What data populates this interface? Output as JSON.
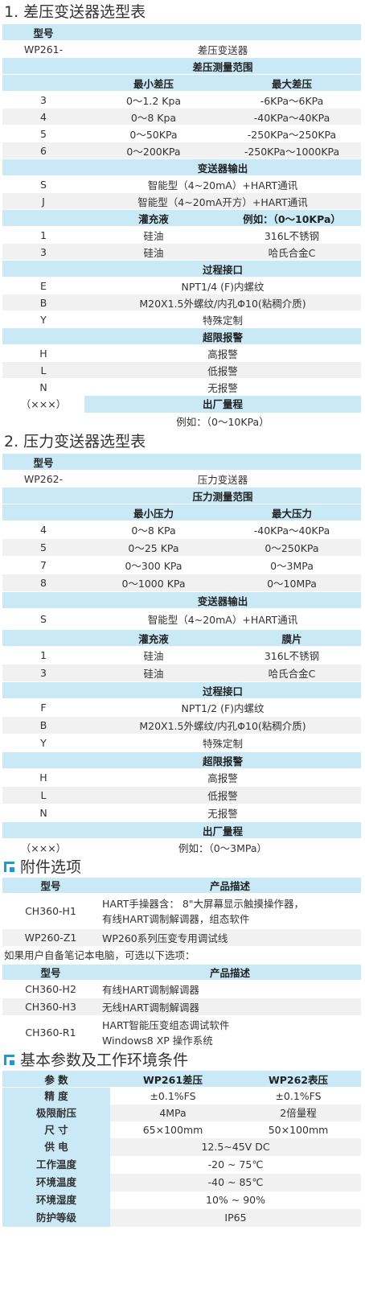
{
  "dp": {
    "title": "1. 差压变送器选型表",
    "model_label": "型号",
    "model_code": "WP261-",
    "model_name": "差压变送器",
    "range_title": "差压测量范围",
    "range_min_h": "最小差压",
    "range_max_h": "最大差压",
    "ranges": [
      {
        "code": "3",
        "min": "0～1.2 Kpa",
        "max": "-6KPa～6KPa"
      },
      {
        "code": "4",
        "min": "0～8 Kpa",
        "max": "-40KPa～40KPa"
      },
      {
        "code": "5",
        "min": "0～50KPa",
        "max": "-250KPa～250KPa"
      },
      {
        "code": "6",
        "min": "0～200KPa",
        "max": "-250KPa～1000KPa"
      }
    ],
    "out_title": "变送器输出",
    "outputs": [
      {
        "code": "S",
        "text": "智能型（4~20mA）+HART通讯"
      },
      {
        "code": "J",
        "text": "智能型（4~20mA开方）+HART通讯"
      }
    ],
    "fill_title": "灌充液",
    "fill_example": "例如：（0～10KPa）",
    "fills": [
      {
        "code": "1",
        "a": "硅油",
        "b": "316L不锈钢"
      },
      {
        "code": "3",
        "a": "硅油",
        "b": "哈氏合金C"
      }
    ],
    "conn_title": "过程接口",
    "conns": [
      {
        "code": "E",
        "text": "NPT1/4 (F)内螺纹"
      },
      {
        "code": "B",
        "text": "M20X1.5外螺纹/内孔Φ10(粘稠介质)"
      },
      {
        "code": "Y",
        "text": "特殊定制"
      }
    ],
    "alarm_title": "超限报警",
    "alarms": [
      {
        "code": "H",
        "text": "高报警"
      },
      {
        "code": "L",
        "text": "低报警"
      },
      {
        "code": "N",
        "text": "无报警"
      }
    ],
    "factory_code": "（×××）",
    "factory_title": "出厂量程",
    "factory_example": "例如：（0～10KPa）"
  },
  "pr": {
    "title": "2. 压力变送器选型表",
    "model_label": "型号",
    "model_code": "WP262-",
    "model_name": "压力变送器",
    "range_title": "压力测量范围",
    "range_min_h": "最小压力",
    "range_max_h": "最大压力",
    "ranges": [
      {
        "code": "4",
        "min": "0～8 KPa",
        "max": "-40KPa～40KPa"
      },
      {
        "code": "5",
        "min": "0～25 KPa",
        "max": "0～250KPa"
      },
      {
        "code": "7",
        "min": "0～300 KPa",
        "max": "0～3MPa"
      },
      {
        "code": "8",
        "min": "0～1000 KPa",
        "max": "0～10MPa"
      }
    ],
    "out_title": "变送器输出",
    "outputs": [
      {
        "code": "S",
        "text": "智能型（4~20mA）+HART通讯"
      }
    ],
    "fill_title": "灌充液",
    "fill_b": "膜片",
    "fills": [
      {
        "code": "1",
        "a": "硅油",
        "b": "316L不锈钢"
      },
      {
        "code": "3",
        "a": "硅油",
        "b": "哈氏合金C"
      }
    ],
    "conn_title": "过程接口",
    "conns": [
      {
        "code": "F",
        "text": "NPT1/2 (F)内螺纹"
      },
      {
        "code": "B",
        "text": "M20X1.5外螺纹/内孔Φ10(粘稠介质)"
      },
      {
        "code": "Y",
        "text": "特殊定制"
      }
    ],
    "alarm_title": "超限报警",
    "alarms": [
      {
        "code": "H",
        "text": "高报警"
      },
      {
        "code": "L",
        "text": "低报警"
      },
      {
        "code": "N",
        "text": "无报警"
      }
    ],
    "factory_title": "出厂量程",
    "factory_code": "（×××）",
    "factory_example": "例如：（0～3MPa）"
  },
  "acc": {
    "title": "附件选项",
    "h_model": "型号",
    "h_desc": "产品描述",
    "items": [
      {
        "model": "CH360-H1",
        "desc1": "HART手操器含：  8\"大屏幕显示触摸操作器，",
        "desc2": "有线HART调制解调器，组态软件"
      },
      {
        "model": "WP260-Z1",
        "desc1": "WP260系列压变专用调试线"
      }
    ],
    "note": "如果用户自备笔记本电脑，可选以下选项：",
    "h_model2": "型号",
    "h_desc2": "产品描述",
    "items2": [
      {
        "model": "CH360-H2",
        "desc1": "有线HART调制解调器"
      },
      {
        "model": "CH360-H3",
        "desc1": "无线HART调制解调器"
      },
      {
        "model": "CH360-R1",
        "desc1": "HART智能压变组态调试软件",
        "desc2": "Windows8 XP 操作系统"
      }
    ]
  },
  "params": {
    "title": "基本参数及工作环境条件",
    "h_param": "参  数",
    "h_a": "WP261差压",
    "h_b": "WP262表压",
    "rows": [
      {
        "name": "精  度",
        "a": "±0.1%FS",
        "b": "±0.1%FS"
      },
      {
        "name": "极限耐压",
        "a": "4MPa",
        "b": "2倍量程"
      },
      {
        "name": "尺  寸",
        "a": "65×100mm",
        "b": "50×100mm"
      }
    ],
    "span_rows": [
      {
        "name": "供  电",
        "v": "12.5~45V DC"
      },
      {
        "name": "工作温度",
        "v": "-20 ~ 75℃"
      },
      {
        "name": "环境温度",
        "v": "-40 ~ 85℃"
      },
      {
        "name": "环境湿度",
        "v": "10% ~ 90%"
      },
      {
        "name": "防护等级",
        "v": "IP65"
      }
    ]
  }
}
